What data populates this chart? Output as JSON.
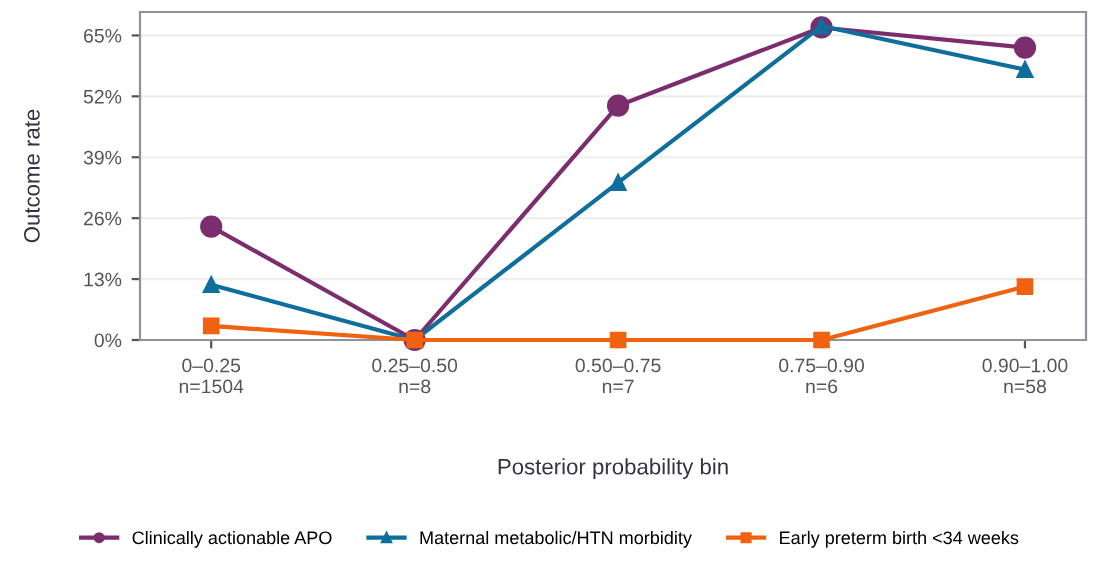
{
  "chart_data": {
    "type": "line",
    "xlabel": "Posterior probability bin",
    "ylabel": "Outcome rate",
    "categories": [
      "0–0.25\nn=1504",
      "0.25–0.50\nn=8",
      "0.50–0.75\nn=7",
      "0.75–0.90\nn=6",
      "0.90–1.00\nn=58"
    ],
    "series": [
      {
        "name": "Clinically actionable APO",
        "color": "#7b2d6e",
        "marker": "circle",
        "values": [
          24.2,
          0,
          50.0,
          66.7,
          62.4
        ]
      },
      {
        "name": "Maternal metabolic/HTN morbidity",
        "color": "#0f6e9c",
        "marker": "triangle",
        "values": [
          11.8,
          0,
          33.6,
          67.0,
          57.7
        ]
      },
      {
        "name": "Early preterm birth <34 weeks",
        "color": "#f0620f",
        "marker": "square",
        "values": [
          3.0,
          0,
          0,
          0,
          11.4
        ]
      }
    ],
    "ylim": [
      0,
      70
    ],
    "yticks": [
      {
        "value": 0,
        "label": "0%"
      },
      {
        "value": 13,
        "label": "13%"
      },
      {
        "value": 26,
        "label": "26%"
      },
      {
        "value": 39,
        "label": "39%"
      },
      {
        "value": 52,
        "label": "52%"
      },
      {
        "value": 65,
        "label": "65%"
      }
    ],
    "grid": "y",
    "legend": "bottom",
    "line_style": "solid"
  }
}
